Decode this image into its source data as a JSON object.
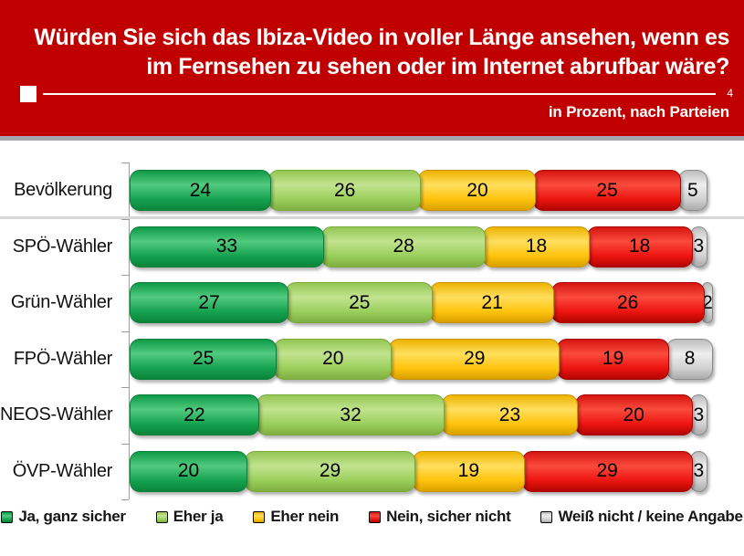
{
  "header": {
    "title_line1": "Würden Sie sich das Ibiza-Video in voller Länge ansehen, wenn es",
    "title_line2": "im Fernsehen zu sehen oder im Internet abrufbar wäre?",
    "page_number": "4",
    "subtitle": "in Prozent, nach Parteien",
    "background_color": "#C00000"
  },
  "chart_data": {
    "type": "bar",
    "stacked": true,
    "orientation": "horizontal",
    "title": "Würden Sie sich das Ibiza-Video in voller Länge ansehen, wenn es im Fernsehen zu sehen oder im Internet abrufbar wäre?",
    "subtitle": "in Prozent, nach Parteien",
    "unit": "percent",
    "xlim": [
      0,
      100
    ],
    "legend_position": "bottom",
    "grid": false,
    "categories": [
      "Bevölkerung",
      "SPÖ-Wähler",
      "Grün-Wähler",
      "FPÖ-Wähler",
      "NEOS-Wähler",
      "ÖVP-Wähler"
    ],
    "series": [
      {
        "name": "Ja, ganz sicher",
        "color": "#00A050",
        "values": [
          24,
          33,
          27,
          25,
          22,
          20
        ]
      },
      {
        "name": "Eher ja",
        "color": "#9BCF5C",
        "values": [
          26,
          28,
          25,
          20,
          32,
          29
        ]
      },
      {
        "name": "Eher nein",
        "color": "#FFC000",
        "values": [
          20,
          18,
          21,
          29,
          23,
          19
        ]
      },
      {
        "name": "Nein, sicher nicht",
        "color": "#EE1511",
        "values": [
          25,
          18,
          26,
          19,
          20,
          29
        ]
      },
      {
        "name": "Weiß nicht / keine Angabe",
        "color": "#BFBFBF",
        "values": [
          5,
          3,
          2,
          8,
          3,
          3
        ]
      }
    ]
  }
}
